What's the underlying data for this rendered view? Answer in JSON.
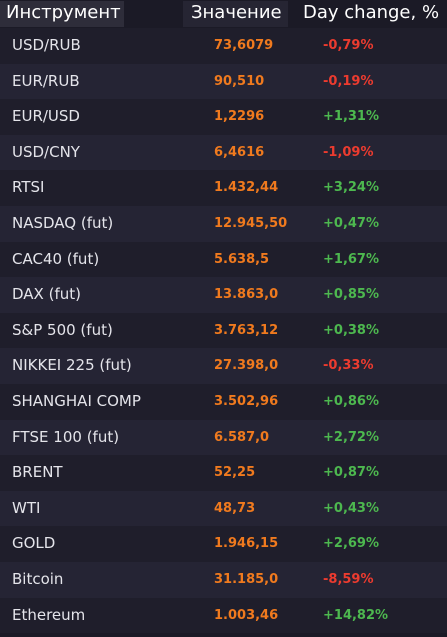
{
  "header": {
    "instrument": "Инструмент",
    "value": "Значение",
    "change": "Day change, %"
  },
  "colors": {
    "value": "#f07a1e",
    "positive": "#4db84f",
    "negative": "#ec3b2f",
    "background": "#1b1a26"
  },
  "rows": [
    {
      "name": "USD/RUB",
      "value": "73,6079",
      "change": "-0,79%",
      "dir": "neg"
    },
    {
      "name": "EUR/RUB",
      "value": "90,510",
      "change": "-0,19%",
      "dir": "neg"
    },
    {
      "name": "EUR/USD",
      "value": "1,2296",
      "change": "+1,31%",
      "dir": "pos"
    },
    {
      "name": "USD/CNY",
      "value": "6,4616",
      "change": "-1,09%",
      "dir": "neg"
    },
    {
      "name": "RTSI",
      "value": "1.432,44",
      "change": "+3,24%",
      "dir": "pos"
    },
    {
      "name": "NASDAQ (fut)",
      "value": "12.945,50",
      "change": "+0,47%",
      "dir": "pos"
    },
    {
      "name": "CAC40 (fut)",
      "value": "5.638,5",
      "change": "+1,67%",
      "dir": "pos"
    },
    {
      "name": "DAX (fut)",
      "value": "13.863,0",
      "change": "+0,85%",
      "dir": "pos"
    },
    {
      "name": "S&P 500 (fut)",
      "value": "3.763,12",
      "change": "+0,38%",
      "dir": "pos"
    },
    {
      "name": "NIKKEI 225 (fut)",
      "value": "27.398,0",
      "change": "-0,33%",
      "dir": "neg"
    },
    {
      "name": "SHANGHAI COMP",
      "value": "3.502,96",
      "change": "+0,86%",
      "dir": "pos"
    },
    {
      "name": "FTSE 100 (fut)",
      "value": "6.587,0",
      "change": "+2,72%",
      "dir": "pos"
    },
    {
      "name": "BRENT",
      "value": "52,25",
      "change": "+0,87%",
      "dir": "pos"
    },
    {
      "name": "WTI",
      "value": "48,73",
      "change": "+0,43%",
      "dir": "pos"
    },
    {
      "name": "GOLD",
      "value": "1.946,15",
      "change": "+2,69%",
      "dir": "pos"
    },
    {
      "name": "Bitcoin",
      "value": "31.185,0",
      "change": "-8,59%",
      "dir": "neg"
    },
    {
      "name": "Ethereum",
      "value": "1.003,46",
      "change": "+14,82%",
      "dir": "pos"
    }
  ]
}
